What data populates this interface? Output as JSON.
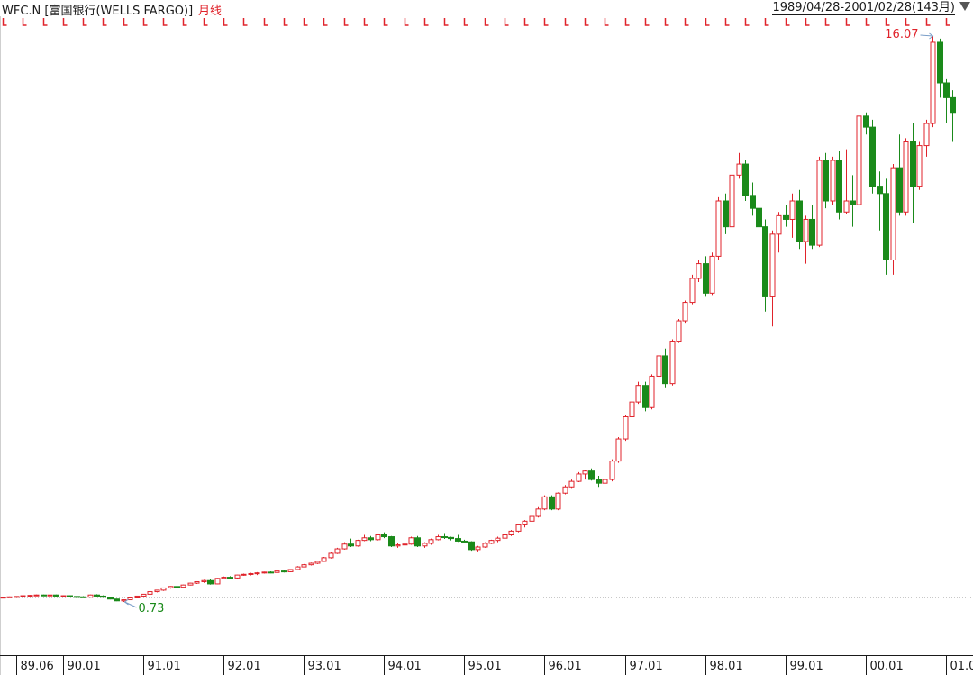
{
  "header": {
    "symbol": "WFC.N [富国银行(WELLS FARGO)]",
    "period": "月线",
    "range": "1989/04/28-2001/02/28(143月)"
  },
  "colors": {
    "up": "#e0232b",
    "down": "#1a8a1a",
    "axis": "#1a1a1a"
  },
  "chart_data": {
    "type": "candlestick",
    "x_ticks": [
      "89.06",
      "90.01",
      "91.01",
      "92.01",
      "93.01",
      "94.01",
      "95.01",
      "96.01",
      "97.01",
      "98.01",
      "99.01",
      "00.01",
      "01.0"
    ],
    "annotations": [
      {
        "label": "16.07",
        "kind": "high",
        "date": "2000/11",
        "value": 16.07
      },
      {
        "label": "0.73",
        "kind": "low",
        "date": "1990/10",
        "value": 0.73
      }
    ],
    "candles": [
      [
        "1989-04",
        0.85,
        0.87,
        0.84,
        0.86
      ],
      [
        "1989-05",
        0.86,
        0.88,
        0.85,
        0.87
      ],
      [
        "1989-06",
        0.87,
        0.89,
        0.86,
        0.88
      ],
      [
        "1989-07",
        0.88,
        0.91,
        0.87,
        0.9
      ],
      [
        "1989-08",
        0.9,
        0.92,
        0.89,
        0.91
      ],
      [
        "1989-09",
        0.91,
        0.93,
        0.9,
        0.92
      ],
      [
        "1989-10",
        0.92,
        0.93,
        0.9,
        0.91
      ],
      [
        "1989-11",
        0.91,
        0.93,
        0.89,
        0.92
      ],
      [
        "1989-12",
        0.92,
        0.93,
        0.88,
        0.89
      ],
      [
        "1990-01",
        0.89,
        0.91,
        0.87,
        0.9
      ],
      [
        "1990-02",
        0.9,
        0.91,
        0.87,
        0.88
      ],
      [
        "1990-03",
        0.88,
        0.9,
        0.86,
        0.87
      ],
      [
        "1990-04",
        0.87,
        0.89,
        0.85,
        0.86
      ],
      [
        "1990-05",
        0.86,
        0.93,
        0.85,
        0.92
      ],
      [
        "1990-06",
        0.92,
        0.94,
        0.88,
        0.89
      ],
      [
        "1990-07",
        0.89,
        0.91,
        0.85,
        0.86
      ],
      [
        "1990-08",
        0.86,
        0.87,
        0.8,
        0.81
      ],
      [
        "1990-09",
        0.81,
        0.82,
        0.75,
        0.76
      ],
      [
        "1990-10",
        0.76,
        0.8,
        0.73,
        0.79
      ],
      [
        "1990-11",
        0.79,
        0.85,
        0.78,
        0.84
      ],
      [
        "1990-12",
        0.84,
        0.9,
        0.83,
        0.89
      ],
      [
        "1991-01",
        0.89,
        0.95,
        0.88,
        0.94
      ],
      [
        "1991-02",
        0.94,
        1.02,
        0.93,
        1.01
      ],
      [
        "1991-03",
        1.01,
        1.06,
        0.99,
        1.05
      ],
      [
        "1991-04",
        1.05,
        1.12,
        1.03,
        1.11
      ],
      [
        "1991-05",
        1.11,
        1.16,
        1.09,
        1.15
      ],
      [
        "1991-06",
        1.15,
        1.17,
        1.11,
        1.13
      ],
      [
        "1991-07",
        1.13,
        1.2,
        1.12,
        1.19
      ],
      [
        "1991-08",
        1.19,
        1.25,
        1.18,
        1.24
      ],
      [
        "1991-09",
        1.24,
        1.29,
        1.22,
        1.28
      ],
      [
        "1991-10",
        1.28,
        1.33,
        1.25,
        1.31
      ],
      [
        "1991-11",
        1.31,
        1.34,
        1.2,
        1.22
      ],
      [
        "1991-12",
        1.22,
        1.38,
        1.21,
        1.37
      ],
      [
        "1992-01",
        1.37,
        1.42,
        1.34,
        1.4
      ],
      [
        "1992-02",
        1.4,
        1.43,
        1.35,
        1.38
      ],
      [
        "1992-03",
        1.38,
        1.47,
        1.36,
        1.46
      ],
      [
        "1992-04",
        1.46,
        1.5,
        1.44,
        1.48
      ],
      [
        "1992-05",
        1.48,
        1.52,
        1.45,
        1.5
      ],
      [
        "1992-06",
        1.5,
        1.54,
        1.46,
        1.52
      ],
      [
        "1992-07",
        1.52,
        1.55,
        1.5,
        1.54
      ],
      [
        "1992-08",
        1.54,
        1.56,
        1.51,
        1.53
      ],
      [
        "1992-09",
        1.53,
        1.58,
        1.52,
        1.57
      ],
      [
        "1992-10",
        1.57,
        1.59,
        1.53,
        1.55
      ],
      [
        "1992-11",
        1.55,
        1.62,
        1.54,
        1.61
      ],
      [
        "1992-12",
        1.61,
        1.7,
        1.6,
        1.68
      ],
      [
        "1993-01",
        1.68,
        1.76,
        1.67,
        1.74
      ],
      [
        "1993-02",
        1.74,
        1.8,
        1.72,
        1.78
      ],
      [
        "1993-03",
        1.78,
        1.85,
        1.76,
        1.83
      ],
      [
        "1993-04",
        1.83,
        1.95,
        1.82,
        1.93
      ],
      [
        "1993-05",
        1.93,
        2.08,
        1.91,
        2.05
      ],
      [
        "1993-06",
        2.05,
        2.2,
        2.03,
        2.17
      ],
      [
        "1993-07",
        2.17,
        2.35,
        2.15,
        2.3
      ],
      [
        "1993-08",
        2.3,
        2.45,
        2.22,
        2.25
      ],
      [
        "1993-09",
        2.25,
        2.42,
        2.23,
        2.4
      ],
      [
        "1993-10",
        2.4,
        2.55,
        2.38,
        2.47
      ],
      [
        "1993-11",
        2.47,
        2.52,
        2.38,
        2.42
      ],
      [
        "1993-12",
        2.42,
        2.58,
        2.4,
        2.55
      ],
      [
        "1994-01",
        2.55,
        2.62,
        2.46,
        2.5
      ],
      [
        "1994-02",
        2.5,
        2.52,
        2.22,
        2.25
      ],
      [
        "1994-03",
        2.25,
        2.32,
        2.2,
        2.28
      ],
      [
        "1994-04",
        2.28,
        2.35,
        2.24,
        2.3
      ],
      [
        "1994-05",
        2.3,
        2.5,
        2.28,
        2.47
      ],
      [
        "1994-06",
        2.47,
        2.52,
        2.22,
        2.25
      ],
      [
        "1994-07",
        2.25,
        2.35,
        2.2,
        2.32
      ],
      [
        "1994-08",
        2.32,
        2.45,
        2.28,
        2.42
      ],
      [
        "1994-09",
        2.42,
        2.55,
        2.4,
        2.5
      ],
      [
        "1994-10",
        2.5,
        2.6,
        2.44,
        2.48
      ],
      [
        "1994-11",
        2.48,
        2.5,
        2.4,
        2.45
      ],
      [
        "1994-12",
        2.45,
        2.55,
        2.36,
        2.38
      ],
      [
        "1995-01",
        2.38,
        2.42,
        2.35,
        2.36
      ],
      [
        "1995-02",
        2.36,
        2.38,
        2.12,
        2.15
      ],
      [
        "1995-03",
        2.15,
        2.25,
        2.1,
        2.22
      ],
      [
        "1995-04",
        2.22,
        2.35,
        2.2,
        2.32
      ],
      [
        "1995-05",
        2.32,
        2.42,
        2.3,
        2.4
      ],
      [
        "1995-06",
        2.4,
        2.5,
        2.35,
        2.46
      ],
      [
        "1995-07",
        2.46,
        2.58,
        2.44,
        2.55
      ],
      [
        "1995-08",
        2.55,
        2.68,
        2.52,
        2.65
      ],
      [
        "1995-09",
        2.65,
        2.85,
        2.62,
        2.82
      ],
      [
        "1995-10",
        2.82,
        2.95,
        2.75,
        2.92
      ],
      [
        "1995-11",
        2.92,
        3.1,
        2.88,
        3.05
      ],
      [
        "1995-12",
        3.05,
        3.3,
        3.02,
        3.25
      ],
      [
        "1996-01",
        3.25,
        3.62,
        3.22,
        3.58
      ],
      [
        "1996-02",
        3.58,
        3.62,
        3.22,
        3.25
      ],
      [
        "1996-03",
        3.25,
        3.7,
        3.22,
        3.68
      ],
      [
        "1996-04",
        3.68,
        3.9,
        3.65,
        3.85
      ],
      [
        "1996-05",
        3.85,
        4.05,
        3.8,
        4.0
      ],
      [
        "1996-06",
        4.0,
        4.25,
        3.98,
        4.2
      ],
      [
        "1996-07",
        4.2,
        4.32,
        4.05,
        4.28
      ],
      [
        "1996-08",
        4.28,
        4.35,
        4.02,
        4.05
      ],
      [
        "1996-09",
        4.05,
        4.15,
        3.85,
        3.95
      ],
      [
        "1996-10",
        3.95,
        4.1,
        3.75,
        4.05
      ],
      [
        "1996-11",
        4.05,
        4.6,
        4.0,
        4.55
      ],
      [
        "1996-12",
        4.55,
        5.2,
        4.5,
        5.15
      ],
      [
        "1997-01",
        5.15,
        5.8,
        5.1,
        5.75
      ],
      [
        "1997-02",
        5.75,
        6.2,
        5.7,
        6.15
      ],
      [
        "1997-03",
        6.15,
        6.7,
        6.1,
        6.6
      ],
      [
        "1997-04",
        6.6,
        6.7,
        5.9,
        6.0
      ],
      [
        "1997-05",
        6.0,
        6.9,
        5.95,
        6.85
      ],
      [
        "1997-06",
        6.85,
        7.5,
        6.8,
        7.4
      ],
      [
        "1997-07",
        7.4,
        7.6,
        6.55,
        6.65
      ],
      [
        "1997-08",
        6.65,
        7.85,
        6.6,
        7.8
      ],
      [
        "1997-09",
        7.8,
        8.4,
        7.75,
        8.35
      ],
      [
        "1997-10",
        8.35,
        8.9,
        8.3,
        8.85
      ],
      [
        "1997-11",
        8.85,
        9.6,
        8.8,
        9.5
      ],
      [
        "1997-12",
        9.5,
        10.0,
        9.4,
        9.9
      ],
      [
        "1998-01",
        9.9,
        10.1,
        9.0,
        9.1
      ],
      [
        "1998-02",
        9.1,
        10.2,
        9.05,
        10.1
      ],
      [
        "1998-03",
        10.1,
        11.7,
        10.0,
        11.6
      ],
      [
        "1998-04",
        11.6,
        11.8,
        10.7,
        10.9
      ],
      [
        "1998-05",
        10.9,
        12.4,
        10.85,
        12.3
      ],
      [
        "1998-06",
        12.3,
        12.9,
        12.2,
        12.6
      ],
      [
        "1998-07",
        12.6,
        12.7,
        11.6,
        11.75
      ],
      [
        "1998-08",
        11.75,
        12.1,
        11.2,
        11.4
      ],
      [
        "1998-09",
        11.4,
        11.7,
        10.6,
        10.9
      ],
      [
        "1998-10",
        10.9,
        11.1,
        8.6,
        9.0
      ],
      [
        "1998-11",
        9.0,
        10.8,
        8.2,
        10.7
      ],
      [
        "1998-12",
        10.7,
        11.3,
        10.2,
        11.2
      ],
      [
        "1999-01",
        11.2,
        11.5,
        10.9,
        11.1
      ],
      [
        "1999-02",
        11.1,
        11.8,
        10.6,
        11.6
      ],
      [
        "1999-03",
        11.6,
        11.9,
        10.3,
        10.5
      ],
      [
        "1999-04",
        10.5,
        11.2,
        9.9,
        11.1
      ],
      [
        "1999-05",
        11.1,
        11.5,
        10.3,
        10.4
      ],
      [
        "1999-06",
        10.4,
        12.8,
        10.35,
        12.7
      ],
      [
        "1999-07",
        12.7,
        12.9,
        11.4,
        11.6
      ],
      [
        "1999-08",
        11.6,
        12.8,
        11.5,
        12.7
      ],
      [
        "1999-09",
        12.7,
        12.95,
        11.1,
        11.3
      ],
      [
        "1999-10",
        11.3,
        13.0,
        11.25,
        11.6
      ],
      [
        "1999-11",
        11.6,
        12.3,
        10.9,
        11.5
      ],
      [
        "1999-12",
        11.5,
        14.1,
        11.4,
        13.9
      ],
      [
        "2000-01",
        13.9,
        14.0,
        13.4,
        13.6
      ],
      [
        "2000-02",
        13.6,
        13.8,
        11.8,
        12.0
      ],
      [
        "2000-03",
        12.0,
        12.4,
        10.8,
        11.8
      ],
      [
        "2000-04",
        11.8,
        12.2,
        9.6,
        10.0
      ],
      [
        "2000-05",
        10.0,
        12.6,
        9.6,
        12.5
      ],
      [
        "2000-06",
        12.5,
        13.4,
        11.2,
        11.3
      ],
      [
        "2000-07",
        11.3,
        13.3,
        11.2,
        13.2
      ],
      [
        "2000-08",
        13.2,
        13.7,
        11.0,
        12.0
      ],
      [
        "2000-09",
        12.0,
        13.2,
        11.9,
        13.1
      ],
      [
        "2000-10",
        13.1,
        13.8,
        12.8,
        13.7
      ],
      [
        "2000-11",
        13.7,
        16.07,
        13.6,
        15.9
      ],
      [
        "2000-12",
        15.9,
        16.0,
        14.4,
        14.8
      ],
      [
        "2001-01",
        14.8,
        14.9,
        13.7,
        14.4
      ],
      [
        "2001-02",
        14.4,
        14.6,
        13.2,
        14.0
      ]
    ]
  }
}
